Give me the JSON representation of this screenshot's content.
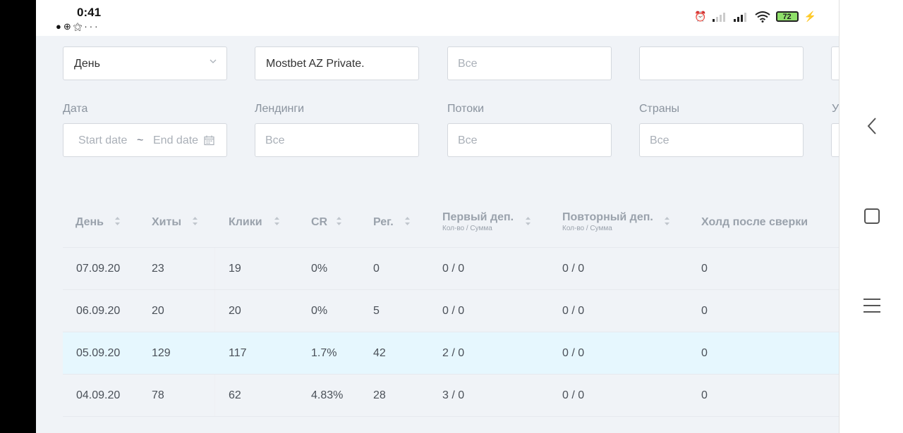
{
  "status_bar": {
    "time": "0:41",
    "battery": "72",
    "notification_icons": [
      "message-icon",
      "plus-circle-icon",
      "bell-icon",
      "more-dots-icon"
    ],
    "system_icons": [
      "alarm-icon",
      "signal-icon",
      "signal-icon",
      "wifi-icon",
      "battery-icon",
      "charging-icon"
    ]
  },
  "filters": {
    "group_value": "День",
    "offer_value": "Mostbet AZ Private.",
    "third_placeholder": "Все",
    "fourth_value": "",
    "date_label": "Дата",
    "date_start_placeholder": "Start date",
    "date_sep": "~",
    "date_end_placeholder": "End date",
    "landings_label": "Лендинги",
    "landings_placeholder": "Все",
    "flows_label": "Потоки",
    "flows_placeholder": "Все",
    "countries_label": "Страны",
    "countries_placeholder": "Все",
    "partial_label": "У"
  },
  "table": {
    "columns": [
      {
        "label": "День"
      },
      {
        "label": "Хиты"
      },
      {
        "label": "Клики"
      },
      {
        "label": "CR"
      },
      {
        "label": "Рег."
      },
      {
        "label": "Первый деп.",
        "sub": "Кол-во / Сумма"
      },
      {
        "label": "Повторный деп.",
        "sub": "Кол-во / Сумма"
      },
      {
        "label": "Холд после сверки"
      }
    ],
    "rows": [
      {
        "day": "07.09.20",
        "hits": "23",
        "clicks": "19",
        "cr": "0%",
        "reg": "0",
        "first_dep": "0 / 0",
        "repeat_dep": "0 / 0",
        "hold": "0"
      },
      {
        "day": "06.09.20",
        "hits": "20",
        "clicks": "20",
        "cr": "0%",
        "reg": "5",
        "first_dep": "0 / 0",
        "repeat_dep": "0 / 0",
        "hold": "0"
      },
      {
        "day": "05.09.20",
        "hits": "129",
        "clicks": "117",
        "cr": "1.7%",
        "reg": "42",
        "first_dep": "2 / 0",
        "repeat_dep": "0 / 0",
        "hold": "0"
      },
      {
        "day": "04.09.20",
        "hits": "78",
        "clicks": "62",
        "cr": "4.83%",
        "reg": "28",
        "first_dep": "3 / 0",
        "repeat_dep": "0 / 0",
        "hold": "0"
      }
    ]
  },
  "nav": {
    "icons": [
      "back-chevron-icon",
      "recent-apps-icon",
      "menu-icon"
    ]
  },
  "colors": {
    "content_bg": "#f0f3f7",
    "highlight_row": "#e6f7fe",
    "battery_fill": "#8fe06a"
  }
}
